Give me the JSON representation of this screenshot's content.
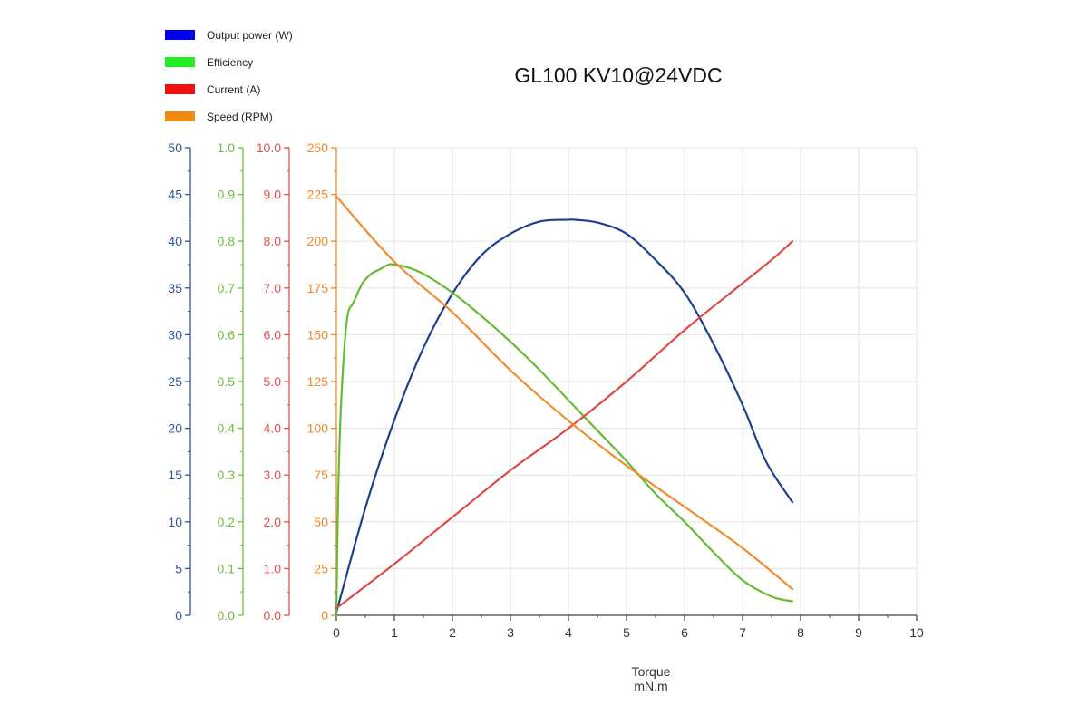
{
  "chart_data": {
    "type": "line",
    "title": "GL100 KV10@24VDC",
    "xlabel_line1": "Torque",
    "xlabel_line2": "mN.m",
    "xlim": [
      0,
      10
    ],
    "x_ticks": [
      "0",
      "1",
      "2",
      "3",
      "4",
      "5",
      "6",
      "7",
      "8",
      "9",
      "10"
    ],
    "grid": true,
    "legend_position": "top-left",
    "axes": [
      {
        "id": "power",
        "color": "#2f5597",
        "range": [
          0,
          50
        ],
        "ticks": [
          "0",
          "5",
          "10",
          "15",
          "20",
          "25",
          "30",
          "35",
          "40",
          "45",
          "50"
        ]
      },
      {
        "id": "efficiency",
        "color": "#6dbf3b",
        "range": [
          0,
          1.0
        ],
        "ticks": [
          "0.0",
          "0.1",
          "0.2",
          "0.3",
          "0.4",
          "0.5",
          "0.6",
          "0.7",
          "0.8",
          "0.9",
          "1.0"
        ]
      },
      {
        "id": "current",
        "color": "#e0504b",
        "range": [
          0,
          10.0
        ],
        "ticks": [
          "0.0",
          "1.0",
          "2.0",
          "3.0",
          "4.0",
          "5.0",
          "6.0",
          "7.0",
          "8.0",
          "9.0",
          "10.0"
        ]
      },
      {
        "id": "speed",
        "color": "#ed8a2c",
        "range": [
          0,
          250
        ],
        "ticks": [
          "0",
          "25",
          "50",
          "75",
          "100",
          "125",
          "150",
          "175",
          "200",
          "225",
          "250"
        ]
      }
    ],
    "series": [
      {
        "name": "Output power (W)",
        "axis": "power",
        "color": "#1f3f8f",
        "legend_color": "#0000ee",
        "x": [
          0,
          0.5,
          1,
          1.5,
          2,
          2.5,
          3,
          3.5,
          4,
          4.1,
          4.5,
          5,
          5.5,
          6,
          6.5,
          7,
          7.4,
          7.86
        ],
        "y": [
          0.3,
          11.5,
          20.9,
          28.6,
          34.4,
          38.5,
          40.8,
          42.1,
          42.3,
          42.3,
          42.0,
          40.8,
          38.0,
          34.5,
          29.0,
          22.5,
          16.5,
          12.1
        ]
      },
      {
        "name": "Efficiency",
        "axis": "efficiency",
        "color": "#66bb33",
        "legend_color": "#22ee22",
        "x": [
          0,
          0.03,
          0.08,
          0.18,
          0.3,
          0.45,
          0.6,
          0.75,
          0.9,
          1.0,
          1.2,
          1.5,
          2,
          2.5,
          3,
          3.5,
          4,
          4.5,
          5,
          5.5,
          6,
          6.5,
          7,
          7.5,
          7.86
        ],
        "y": [
          0.0,
          0.25,
          0.45,
          0.63,
          0.67,
          0.71,
          0.73,
          0.74,
          0.75,
          0.75,
          0.745,
          0.73,
          0.69,
          0.64,
          0.585,
          0.525,
          0.46,
          0.395,
          0.33,
          0.26,
          0.2,
          0.135,
          0.075,
          0.04,
          0.03
        ]
      },
      {
        "name": "Current (A)",
        "axis": "current",
        "color": "#dd4b45",
        "legend_color": "#ee1111",
        "x": [
          0,
          1,
          2,
          3,
          4,
          5,
          6,
          7,
          7.5,
          7.86
        ],
        "y": [
          0.15,
          1.1,
          2.1,
          3.1,
          4.0,
          5.0,
          6.1,
          7.1,
          7.6,
          8.0
        ]
      },
      {
        "name": "Speed (RPM)",
        "axis": "speed",
        "color": "#ef8c2e",
        "legend_color": "#f08a10",
        "x": [
          0,
          1,
          2,
          3,
          4,
          5,
          6,
          7,
          7.86
        ],
        "y": [
          224,
          189,
          162,
          131,
          104,
          80,
          58,
          36,
          14
        ]
      }
    ]
  }
}
